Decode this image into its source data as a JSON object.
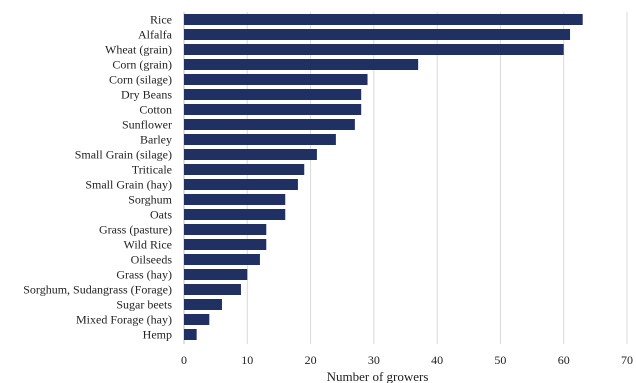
{
  "chart_data": {
    "type": "bar",
    "orientation": "horizontal",
    "categories": [
      "Rice",
      "Alfalfa",
      "Wheat (grain)",
      "Corn (grain)",
      "Corn (silage)",
      "Dry Beans",
      "Cotton",
      "Sunflower",
      "Barley",
      "Small Grain (silage)",
      "Triticale",
      "Small Grain (hay)",
      "Sorghum",
      "Oats",
      "Grass (pasture)",
      "Wild Rice",
      "Oilseeds",
      "Grass (hay)",
      "Sorghum, Sudangrass (Forage)",
      "Sugar beets",
      "Mixed Forage  (hay)",
      "Hemp"
    ],
    "values": [
      63,
      61,
      60,
      37,
      29,
      28,
      28,
      27,
      24,
      21,
      19,
      18,
      16,
      16,
      13,
      13,
      12,
      10,
      9,
      6,
      4,
      2
    ],
    "title": "",
    "xlabel": "Number of growers",
    "ylabel": "",
    "xlim": [
      0,
      70
    ],
    "xticks": [
      0,
      10,
      20,
      30,
      40,
      50,
      60,
      70
    ],
    "grid": "vertical",
    "bar_color": "#213063"
  }
}
